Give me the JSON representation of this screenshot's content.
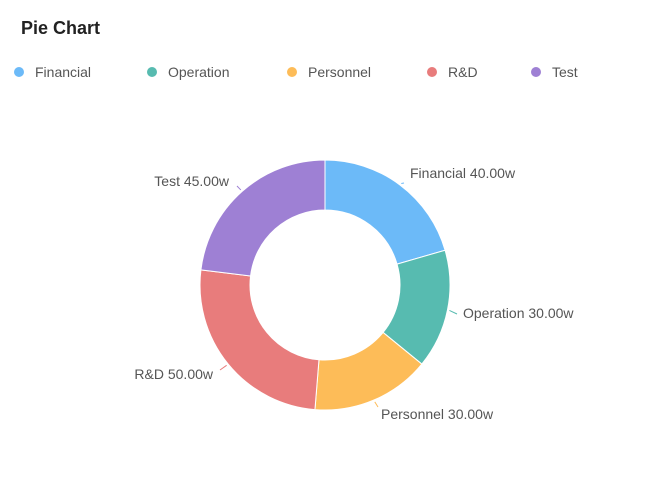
{
  "chart_data": {
    "type": "pie",
    "title": "Pie Chart",
    "donut": true,
    "legend_position": "top",
    "unit_suffix": "w",
    "slices": [
      {
        "name": "Financial",
        "value": 40.0,
        "label": "Financial  40.00w",
        "color": "#6cbaf8"
      },
      {
        "name": "Operation",
        "value": 30.0,
        "label": "Operation  30.00w",
        "color": "#57bbb0"
      },
      {
        "name": "Personnel",
        "value": 30.0,
        "label": "Personnel  30.00w",
        "color": "#fdbc58"
      },
      {
        "name": "R&D",
        "value": 50.0,
        "label": "R&D  50.00w",
        "color": "#e87c7c"
      },
      {
        "name": "Test",
        "value": 45.0,
        "label": "Test  45.00w",
        "color": "#9e80d4"
      }
    ]
  }
}
